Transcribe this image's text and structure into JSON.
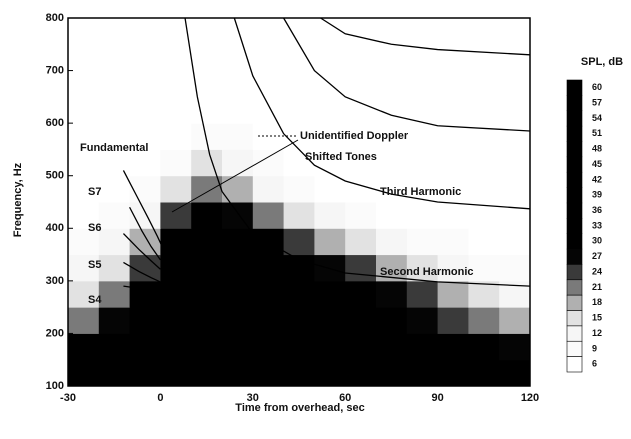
{
  "chart_data": {
    "type": "heatmap",
    "xlabel": "Time from overhead, sec",
    "ylabel": "Frequency, Hz",
    "xlim": [
      -30,
      120
    ],
    "xticks": [
      -30,
      0,
      30,
      60,
      90,
      120
    ],
    "ylim": [
      100,
      800
    ],
    "yticks": [
      100,
      200,
      300,
      400,
      500,
      600,
      700,
      800
    ],
    "xbins": [
      -30,
      -20,
      -10,
      0,
      10,
      20,
      30,
      40,
      50,
      60,
      70,
      80,
      90,
      100,
      110,
      120
    ],
    "ybins": [
      100,
      150,
      200,
      250,
      300,
      350,
      400,
      450,
      500,
      550,
      600,
      650,
      700,
      750,
      800
    ],
    "z": [
      [
        36,
        39,
        42,
        48,
        51,
        51,
        48,
        45,
        42,
        42,
        39,
        39,
        36,
        36,
        33
      ],
      [
        30,
        33,
        39,
        45,
        48,
        48,
        45,
        42,
        39,
        36,
        36,
        33,
        33,
        30,
        27
      ],
      [
        21,
        27,
        36,
        42,
        45,
        45,
        42,
        39,
        36,
        33,
        30,
        27,
        24,
        21,
        18
      ],
      [
        15,
        21,
        30,
        39,
        42,
        42,
        39,
        36,
        33,
        30,
        27,
        24,
        18,
        15,
        12
      ],
      [
        12,
        15,
        24,
        36,
        39,
        39,
        36,
        33,
        27,
        24,
        18,
        15,
        12,
        9,
        9
      ],
      [
        9,
        12,
        18,
        33,
        36,
        36,
        30,
        24,
        18,
        15,
        12,
        9,
        9,
        6,
        6
      ],
      [
        6,
        9,
        12,
        24,
        30,
        27,
        21,
        15,
        12,
        9,
        6,
        6,
        6,
        6,
        6
      ],
      [
        6,
        6,
        9,
        15,
        21,
        18,
        12,
        9,
        6,
        6,
        6,
        6,
        6,
        6,
        6
      ],
      [
        6,
        6,
        6,
        9,
        15,
        12,
        9,
        6,
        6,
        6,
        6,
        6,
        6,
        6,
        6
      ],
      [
        6,
        6,
        6,
        6,
        9,
        9,
        6,
        6,
        6,
        6,
        6,
        6,
        6,
        6,
        6
      ],
      [
        6,
        6,
        6,
        6,
        6,
        6,
        6,
        6,
        6,
        6,
        6,
        6,
        6,
        6,
        6
      ],
      [
        6,
        6,
        6,
        6,
        6,
        6,
        6,
        6,
        6,
        6,
        6,
        6,
        6,
        6,
        6
      ],
      [
        6,
        6,
        6,
        6,
        6,
        6,
        6,
        6,
        6,
        6,
        6,
        6,
        6,
        6,
        6
      ],
      [
        6,
        6,
        6,
        6,
        6,
        6,
        6,
        6,
        6,
        6,
        6,
        6,
        6,
        6,
        6
      ]
    ],
    "colorbar": {
      "title": "SPL, dB",
      "ticks": [
        60,
        57,
        54,
        51,
        48,
        45,
        42,
        39,
        36,
        33,
        30,
        27,
        24,
        21,
        18,
        15,
        12,
        9,
        6
      ],
      "colors": [
        "#000",
        "#000",
        "#000",
        "#000",
        "#000",
        "#000",
        "#000",
        "#000",
        "#000",
        "#000",
        "#000",
        "#050505",
        "#3a3a3a",
        "#7a7a7a",
        "#b0b0b0",
        "#e2e2e2",
        "#f6f6f6",
        "#fbfbfb",
        "#fff"
      ]
    },
    "series": [
      {
        "name": "Fundamental",
        "color": "#000",
        "x": [
          -12,
          -8,
          -4,
          -1,
          1
        ],
        "values": [
          510,
          465,
          420,
          385,
          360
        ]
      },
      {
        "name": "S7",
        "color": "#000",
        "x": [
          -10,
          -6,
          -3,
          0
        ],
        "values": [
          440,
          395,
          365,
          340
        ]
      },
      {
        "name": "S6",
        "color": "#000",
        "x": [
          -12,
          -7,
          -3,
          0
        ],
        "values": [
          390,
          360,
          338,
          322
        ]
      },
      {
        "name": "S5",
        "color": "#000",
        "x": [
          -12,
          -7,
          -3,
          0
        ],
        "values": [
          335,
          318,
          306,
          298
        ]
      },
      {
        "name": "S4",
        "color": "#000",
        "x": [
          -12,
          -6,
          0
        ],
        "values": [
          290,
          285,
          280
        ]
      },
      {
        "name": "Second Harmonic",
        "color": "#000",
        "x": [
          8,
          12,
          16,
          20,
          30,
          45,
          60,
          90,
          120
        ],
        "values": [
          800,
          650,
          540,
          470,
          390,
          340,
          315,
          298,
          290
        ]
      },
      {
        "name": "Third Harmonic",
        "color": "#000",
        "x": [
          24,
          30,
          40,
          50,
          60,
          75,
          90,
          120
        ],
        "values": [
          800,
          690,
          580,
          520,
          490,
          465,
          450,
          437
        ]
      },
      {
        "color": "#000",
        "x": [
          40,
          50,
          60,
          75,
          90,
          120
        ],
        "values": [
          800,
          700,
          650,
          615,
          595,
          585
        ]
      },
      {
        "color": "#000",
        "x": [
          52,
          60,
          75,
          90,
          120
        ],
        "values": [
          800,
          770,
          750,
          740,
          730
        ]
      }
    ],
    "annotations": [
      "Unidentified Doppler",
      "Shifted Tones"
    ]
  }
}
